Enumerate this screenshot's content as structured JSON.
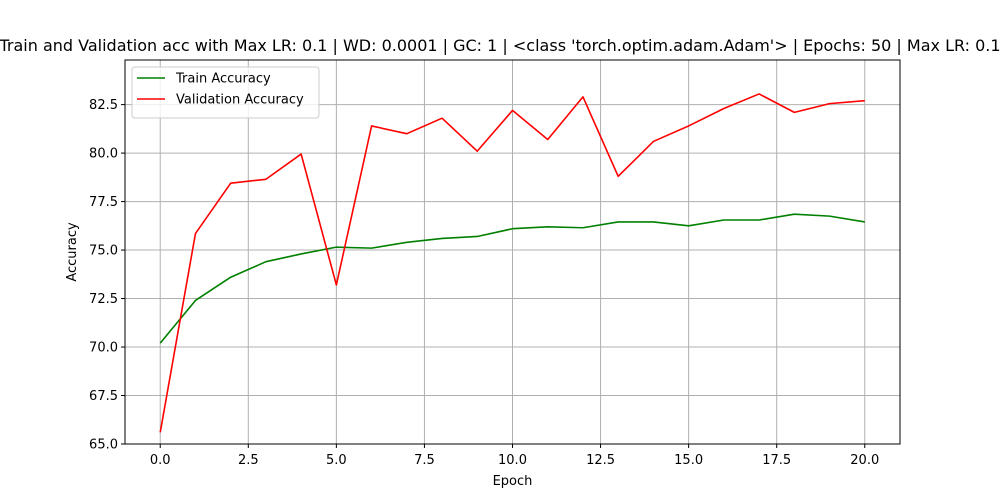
{
  "chart_data": {
    "type": "line",
    "title": "Train and Validation acc with Max LR: 0.1 | WD: 0.0001 | GC: 1 | <class 'torch.optim.adam.Adam'> | Epochs: 50 | Max LR: 0.1",
    "xlabel": "Epoch",
    "ylabel": "Accuracy",
    "xlim": [
      -1.0,
      21.0
    ],
    "ylim": [
      65.0,
      84.8
    ],
    "xticks": [
      0.0,
      2.5,
      5.0,
      7.5,
      10.0,
      12.5,
      15.0,
      17.5,
      20.0
    ],
    "xtick_labels": [
      "0.0",
      "2.5",
      "5.0",
      "7.5",
      "10.0",
      "12.5",
      "15.0",
      "17.5",
      "20.0"
    ],
    "yticks": [
      65.0,
      67.5,
      70.0,
      72.5,
      75.0,
      77.5,
      80.0,
      82.5
    ],
    "ytick_labels": [
      "65.0",
      "67.5",
      "70.0",
      "72.5",
      "75.0",
      "77.5",
      "80.0",
      "82.5"
    ],
    "grid": true,
    "legend_position": "top-left",
    "x": [
      0,
      1,
      2,
      3,
      4,
      5,
      6,
      7,
      8,
      9,
      10,
      11,
      12,
      13,
      14,
      15,
      16,
      17,
      18,
      19,
      20
    ],
    "series": [
      {
        "name": "Train Accuracy",
        "color": "#008000",
        "values": [
          70.2,
          72.4,
          73.6,
          74.4,
          74.8,
          75.15,
          75.1,
          75.4,
          75.6,
          75.7,
          76.1,
          76.2,
          76.15,
          76.45,
          76.45,
          76.25,
          76.55,
          76.55,
          76.85,
          76.75,
          76.45
        ]
      },
      {
        "name": "Validation Accuracy",
        "color": "#ff0000",
        "values": [
          65.6,
          75.85,
          78.45,
          78.65,
          79.95,
          73.2,
          81.4,
          81.0,
          81.8,
          80.1,
          82.2,
          80.7,
          82.9,
          78.8,
          80.6,
          81.4,
          82.3,
          83.05,
          82.1,
          82.55,
          82.7
        ]
      }
    ]
  }
}
